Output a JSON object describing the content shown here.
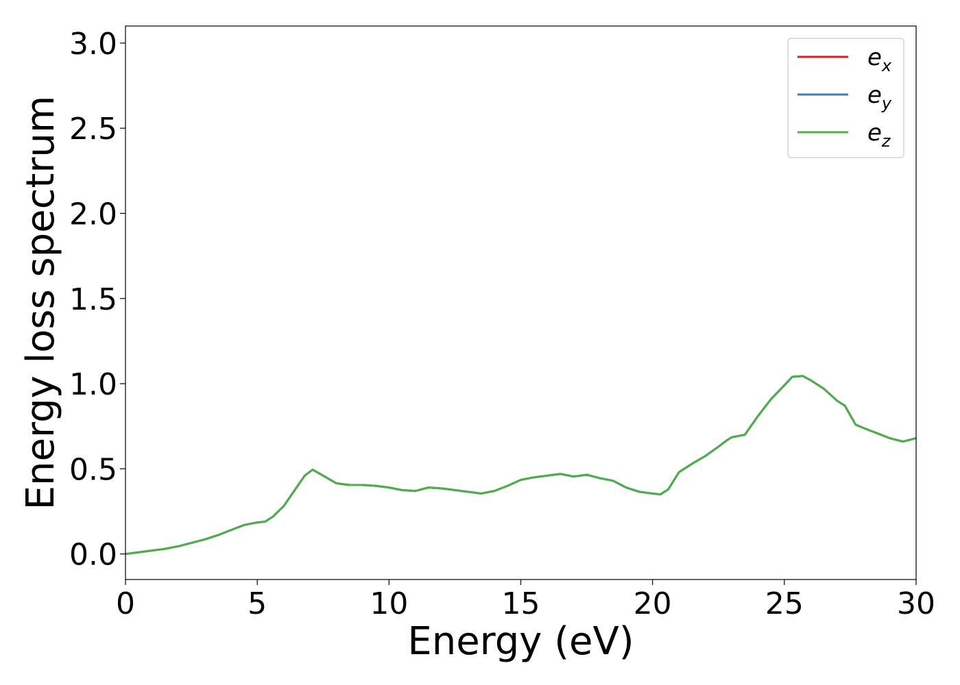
{
  "chart_data": {
    "type": "line",
    "xlabel": "Energy (eV)",
    "ylabel": "Energy loss spectrum",
    "xlim": [
      0,
      30
    ],
    "ylim": [
      -0.15,
      3.1
    ],
    "xticks": [
      0,
      5,
      10,
      15,
      20,
      25,
      30
    ],
    "xtick_labels": [
      "0",
      "5",
      "10",
      "15",
      "20",
      "25",
      "30"
    ],
    "yticks": [
      0.0,
      0.5,
      1.0,
      1.5,
      2.0,
      2.5,
      3.0
    ],
    "ytick_labels": [
      "0.0",
      "0.5",
      "1.0",
      "1.5",
      "2.0",
      "2.5",
      "3.0"
    ],
    "grid": false,
    "legend_position": "top-right",
    "x": [
      0,
      0.5,
      1,
      1.5,
      2,
      2.5,
      3,
      3.5,
      4,
      4.5,
      5,
      5.3,
      5.6,
      6,
      6.4,
      6.8,
      7.1,
      7.5,
      8,
      8.5,
      9,
      9.5,
      10,
      10.5,
      11,
      11.5,
      12,
      12.5,
      13,
      13.5,
      14,
      14.5,
      15,
      15.5,
      16,
      16.5,
      17,
      17.5,
      18,
      18.5,
      19,
      19.5,
      20,
      20.3,
      20.6,
      21,
      21.5,
      22,
      22.5,
      22.8,
      23,
      23.5,
      24,
      24.5,
      25,
      25.3,
      25.7,
      26,
      26.5,
      27,
      27.3,
      27.7,
      28,
      28.5,
      29,
      29.5,
      30
    ],
    "series": [
      {
        "name": "e_x",
        "color": "#e41a1c",
        "values": [
          0.0,
          0.01,
          0.02,
          0.03,
          0.045,
          0.065,
          0.085,
          0.11,
          0.14,
          0.17,
          0.185,
          0.19,
          0.22,
          0.28,
          0.37,
          0.46,
          0.495,
          0.46,
          0.415,
          0.405,
          0.405,
          0.4,
          0.39,
          0.375,
          0.37,
          0.39,
          0.385,
          0.375,
          0.365,
          0.355,
          0.37,
          0.4,
          0.435,
          0.45,
          0.46,
          0.47,
          0.455,
          0.465,
          0.445,
          0.43,
          0.39,
          0.365,
          0.355,
          0.35,
          0.38,
          0.48,
          0.53,
          0.575,
          0.63,
          0.665,
          0.685,
          0.7,
          0.81,
          0.91,
          0.99,
          1.04,
          1.045,
          1.02,
          0.97,
          0.9,
          0.87,
          0.76,
          0.74,
          0.71,
          0.68,
          0.66,
          0.68
        ]
      },
      {
        "name": "e_y",
        "color": "#377eb8",
        "values": [
          0.0,
          0.01,
          0.02,
          0.03,
          0.045,
          0.065,
          0.085,
          0.11,
          0.14,
          0.17,
          0.185,
          0.19,
          0.22,
          0.28,
          0.37,
          0.46,
          0.495,
          0.46,
          0.415,
          0.405,
          0.405,
          0.4,
          0.39,
          0.375,
          0.37,
          0.39,
          0.385,
          0.375,
          0.365,
          0.355,
          0.37,
          0.4,
          0.435,
          0.45,
          0.46,
          0.47,
          0.455,
          0.465,
          0.445,
          0.43,
          0.39,
          0.365,
          0.355,
          0.35,
          0.38,
          0.48,
          0.53,
          0.575,
          0.63,
          0.665,
          0.685,
          0.7,
          0.81,
          0.91,
          0.99,
          1.04,
          1.045,
          1.02,
          0.97,
          0.9,
          0.87,
          0.76,
          0.74,
          0.71,
          0.68,
          0.66,
          0.68
        ]
      },
      {
        "name": "e_z",
        "color": "#4daf4a",
        "values": [
          0.0,
          0.01,
          0.02,
          0.03,
          0.045,
          0.065,
          0.085,
          0.11,
          0.14,
          0.17,
          0.185,
          0.19,
          0.22,
          0.28,
          0.37,
          0.46,
          0.495,
          0.46,
          0.415,
          0.405,
          0.405,
          0.4,
          0.39,
          0.375,
          0.37,
          0.39,
          0.385,
          0.375,
          0.365,
          0.355,
          0.37,
          0.4,
          0.435,
          0.45,
          0.46,
          0.47,
          0.455,
          0.465,
          0.445,
          0.43,
          0.39,
          0.365,
          0.355,
          0.35,
          0.38,
          0.48,
          0.53,
          0.575,
          0.63,
          0.665,
          0.685,
          0.7,
          0.81,
          0.91,
          0.99,
          1.04,
          1.045,
          1.02,
          0.97,
          0.9,
          0.87,
          0.76,
          0.74,
          0.71,
          0.68,
          0.66,
          0.68
        ]
      }
    ],
    "legend": [
      {
        "base": "e",
        "sub": "x"
      },
      {
        "base": "e",
        "sub": "y"
      },
      {
        "base": "e",
        "sub": "z"
      }
    ]
  }
}
